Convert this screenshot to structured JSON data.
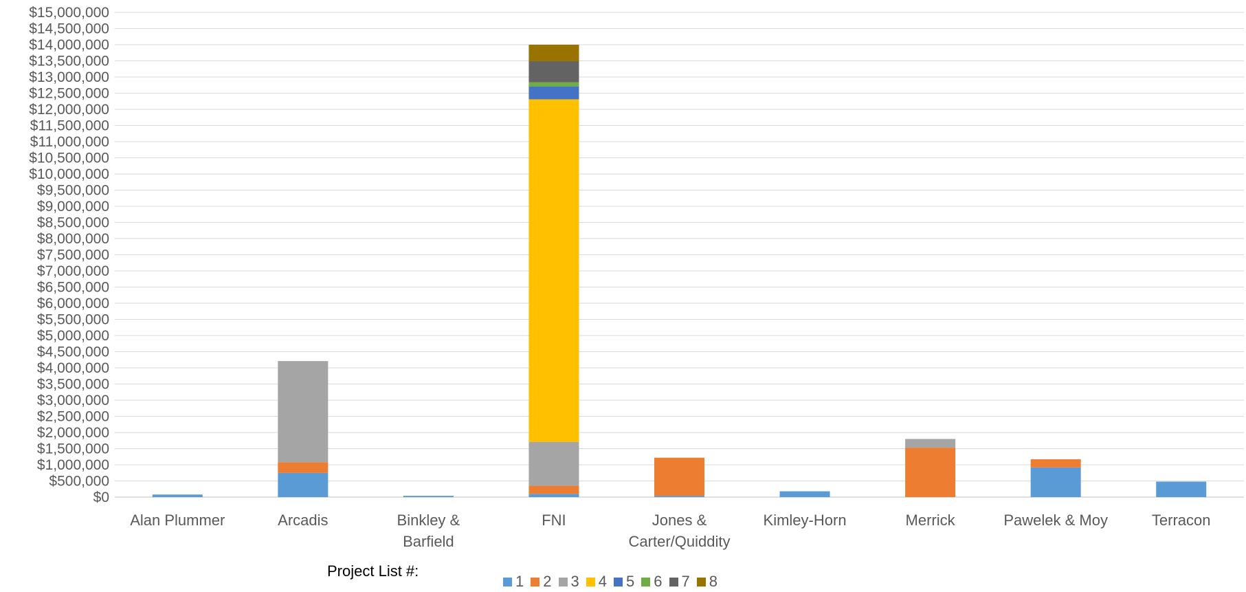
{
  "chart_data": {
    "type": "bar",
    "stacked": true,
    "categories": [
      [
        "Alan Plummer"
      ],
      [
        "Arcadis"
      ],
      [
        "Binkley &",
        "Barfield"
      ],
      [
        "FNI"
      ],
      [
        "Jones &",
        "Carter/Quiddity"
      ],
      [
        "Kimley-Horn"
      ],
      [
        "Merrick"
      ],
      [
        "Pawelek & Moy"
      ],
      [
        "Terracon"
      ]
    ],
    "series": [
      {
        "name": "1",
        "color": "#5B9BD5",
        "values": [
          80000,
          750000,
          40000,
          100000,
          40000,
          180000,
          0,
          920000,
          480000
        ]
      },
      {
        "name": "2",
        "color": "#ED7D31",
        "values": [
          0,
          330000,
          0,
          250000,
          1180000,
          0,
          1530000,
          250000,
          0
        ]
      },
      {
        "name": "3",
        "color": "#A5A5A5",
        "values": [
          0,
          3130000,
          0,
          1360000,
          0,
          0,
          270000,
          0,
          0
        ]
      },
      {
        "name": "4",
        "color": "#FFC000",
        "values": [
          0,
          0,
          0,
          10600000,
          0,
          0,
          0,
          0,
          0
        ]
      },
      {
        "name": "5",
        "color": "#4472C4",
        "values": [
          0,
          0,
          0,
          400000,
          0,
          0,
          0,
          0,
          0
        ]
      },
      {
        "name": "6",
        "color": "#70AD47",
        "values": [
          0,
          0,
          0,
          130000,
          0,
          0,
          0,
          0,
          0
        ]
      },
      {
        "name": "7",
        "color": "#636363",
        "values": [
          0,
          0,
          0,
          650000,
          0,
          0,
          0,
          0,
          0
        ]
      },
      {
        "name": "8",
        "color": "#997300",
        "values": [
          0,
          0,
          0,
          510000,
          0,
          0,
          0,
          0,
          0
        ]
      }
    ],
    "ylim": [
      0,
      15000000
    ],
    "ytick_step": 500000,
    "ytick_labels": [
      "$0",
      "$500,000",
      "$1,000,000",
      "$1,500,000",
      "$2,000,000",
      "$2,500,000",
      "$3,000,000",
      "$3,500,000",
      "$4,000,000",
      "$4,500,000",
      "$5,000,000",
      "$5,500,000",
      "$6,000,000",
      "$6,500,000",
      "$7,000,000",
      "$7,500,000",
      "$8,000,000",
      "$8,500,000",
      "$9,000,000",
      "$9,500,000",
      "$10,000,000",
      "$10,500,000",
      "$11,000,000",
      "$11,500,000",
      "$12,000,000",
      "$12,500,000",
      "$13,000,000",
      "$13,500,000",
      "$14,000,000",
      "$14,500,000",
      "$15,000,000"
    ],
    "grid": true,
    "legend_title": "Project List #:",
    "legend_position": "bottom"
  }
}
